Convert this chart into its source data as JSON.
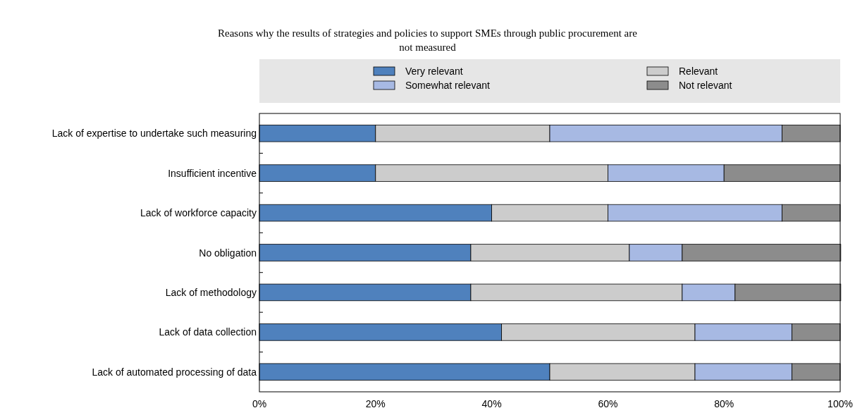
{
  "chart_data": {
    "type": "bar",
    "orientation": "horizontal",
    "stacked": true,
    "title": "Reasons why the results of strategies and policies to support SMEs through public procurement are not measured",
    "categories": [
      "Lack of expertise to undertake such measuring",
      "Insufficient incentive",
      "Lack of workforce capacity",
      "No obligation",
      "Lack of methodology",
      "Lack of data collection",
      "Lack of automated processing of data"
    ],
    "series": [
      {
        "name": "Very relevant",
        "color": "#4f81bd",
        "values": [
          20,
          20,
          40,
          36.4,
          36.4,
          41.7,
          50
        ]
      },
      {
        "name": "Relevant",
        "color": "#cccccc",
        "values": [
          30,
          40,
          20,
          27.3,
          36.4,
          33.3,
          25
        ]
      },
      {
        "name": "Somewhat relevant",
        "color": "#a7b9e3",
        "values": [
          40,
          20,
          30,
          9.1,
          9.1,
          16.7,
          16.7
        ]
      },
      {
        "name": "Not relevant",
        "color": "#8c8c8c",
        "values": [
          10,
          20,
          10,
          27.3,
          18.2,
          8.3,
          8.3
        ]
      }
    ],
    "xlim": [
      0,
      100
    ],
    "xticks": [
      {
        "value": 0,
        "label": "0%"
      },
      {
        "value": 20,
        "label": "20%"
      },
      {
        "value": 40,
        "label": "40%"
      },
      {
        "value": 60,
        "label": "60%"
      },
      {
        "value": 80,
        "label": "80%"
      },
      {
        "value": 100,
        "label": "100%"
      }
    ],
    "legend": "top",
    "grid": false
  }
}
